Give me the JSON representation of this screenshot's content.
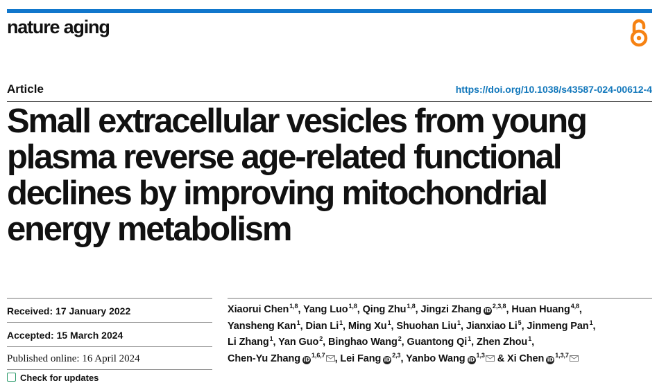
{
  "header": {
    "journal_name": "nature aging",
    "open_access_icon": "open-access-icon",
    "brand_color": "#1177cc",
    "oa_color": "#f68212"
  },
  "meta": {
    "article_type": "Article",
    "doi": "https://doi.org/10.1038/s43587-024-00612-4"
  },
  "title_lines": [
    "Small extracellular vesicles from young",
    "plasma reverse age-related functional",
    "declines by improving mitochondrial",
    "energy metabolism"
  ],
  "dates": {
    "received": "Received: 17 January 2022",
    "accepted": "Accepted: 15 March 2024",
    "published": "Published online: 16 April 2024",
    "check_updates": "Check for updates"
  },
  "authors": [
    {
      "name": "Xiaorui Chen",
      "aff": "1,8"
    },
    {
      "name": "Yang Luo",
      "aff": "1,8"
    },
    {
      "name": "Qing Zhu",
      "aff": "1,8"
    },
    {
      "name": "Jingzi Zhang",
      "aff": "2,3,8"
    },
    {
      "name": "Huan Huang",
      "aff": "4,8"
    },
    {
      "name": "Yansheng Kan",
      "aff": "1"
    },
    {
      "name": "Dian Li",
      "aff": "1"
    },
    {
      "name": "Ming Xu",
      "aff": "1"
    },
    {
      "name": "Shuohan Liu",
      "aff": "1"
    },
    {
      "name": "Jianxiao Li",
      "aff": "5"
    },
    {
      "name": "Jinmeng Pan",
      "aff": "1"
    },
    {
      "name": "Li Zhang",
      "aff": "1"
    },
    {
      "name": "Yan Guo",
      "aff": "2"
    },
    {
      "name": "Binghao Wang",
      "aff": "2"
    },
    {
      "name": "Guantong Qi",
      "aff": "1"
    },
    {
      "name": "Zhen Zhou",
      "aff": "1"
    },
    {
      "name": "Chen-Yu Zhang",
      "aff": "1,6,7"
    },
    {
      "name": "Lei Fang",
      "aff": "2,3"
    },
    {
      "name": "Yanbo Wang",
      "aff": "1,3"
    },
    {
      "name": "Xi Chen",
      "aff": "1,3,7"
    }
  ],
  "author_separator": ", ",
  "author_final_joiner": " & "
}
